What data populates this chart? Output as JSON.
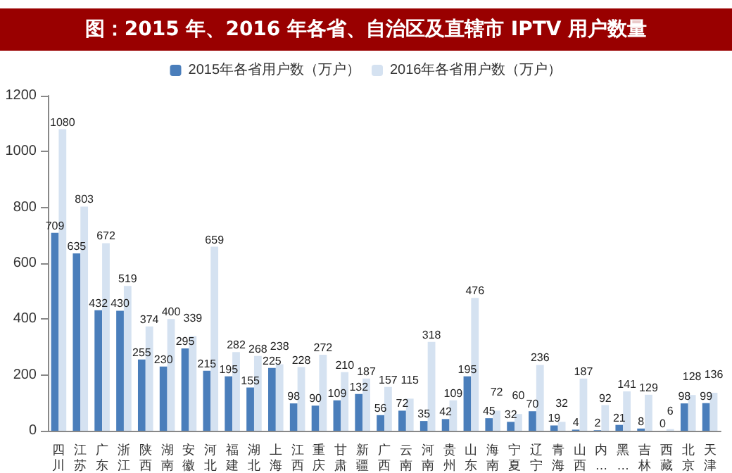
{
  "chart_data": {
    "type": "bar",
    "title": "图：2015 年、2016 年各省、自治区及直辖市 IPTV 用户数量",
    "categories": [
      "四川",
      "江苏",
      "广东",
      "浙江",
      "陕西",
      "湖南",
      "安徽",
      "河北",
      "福建",
      "湖北",
      "上海",
      "江西",
      "重庆",
      "甘肃",
      "新疆",
      "广西",
      "云南",
      "河南",
      "贵州",
      "山东",
      "海南",
      "宁夏",
      "辽宁",
      "青海",
      "山西",
      "内…",
      "黑…",
      "吉林",
      "西藏",
      "北京",
      "天津"
    ],
    "series": [
      {
        "name": "2015年各省用户数（万户）",
        "color": "#4a7ebb",
        "values": [
          709,
          635,
          432,
          430,
          255,
          230,
          295,
          215,
          195,
          155,
          225,
          98,
          90,
          109,
          132,
          56,
          72,
          35,
          42,
          195,
          45,
          32,
          70,
          19,
          4,
          2,
          21,
          8,
          0,
          98,
          99
        ]
      },
      {
        "name": "2016年各省用户数（万户）",
        "color": "#d5e2f1",
        "values": [
          1080,
          803,
          672,
          519,
          374,
          400,
          339,
          659,
          282,
          268,
          238,
          228,
          272,
          210,
          187,
          157,
          115,
          318,
          109,
          476,
          72,
          60,
          236,
          32,
          187,
          92,
          141,
          129,
          6,
          128,
          136
        ]
      }
    ],
    "ylim": [
      0,
      1200
    ],
    "yticks": [
      0,
      200,
      400,
      600,
      800,
      1000,
      1200
    ],
    "grid": false,
    "legend": "top",
    "data_labels": true
  }
}
